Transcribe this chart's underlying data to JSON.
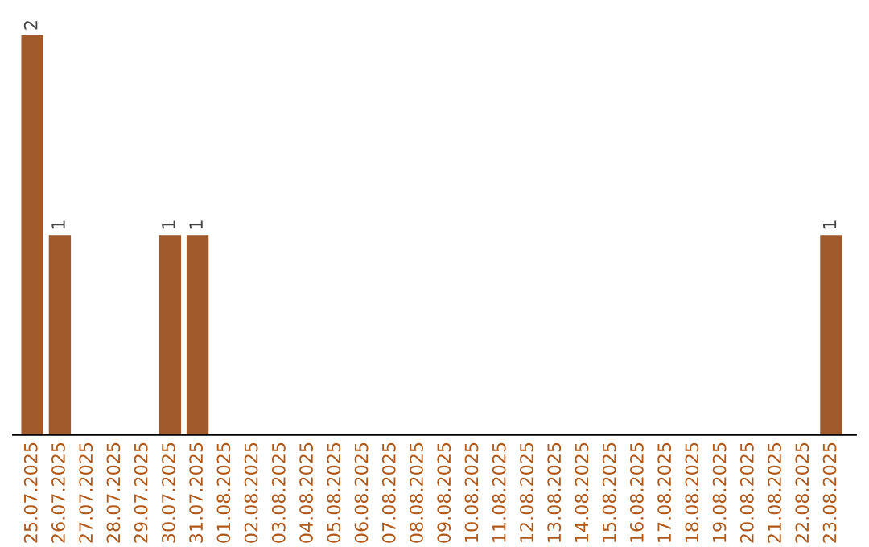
{
  "chart_data": {
    "type": "bar",
    "categories": [
      "25.07.2025",
      "26.07.2025",
      "27.07.2025",
      "28.07.2025",
      "29.07.2025",
      "30.07.2025",
      "31.07.2025",
      "01.08.2025",
      "02.08.2025",
      "03.08.2025",
      "04.08.2025",
      "05.08.2025",
      "06.08.2025",
      "07.08.2025",
      "08.08.2025",
      "09.08.2025",
      "10.08.2025",
      "11.08.2025",
      "12.08.2025",
      "13.08.2025",
      "14.08.2025",
      "15.08.2025",
      "16.08.2025",
      "17.08.2025",
      "18.08.2025",
      "19.08.2025",
      "20.08.2025",
      "21.08.2025",
      "22.08.2025",
      "23.08.2025"
    ],
    "values": [
      2,
      1,
      0,
      0,
      0,
      1,
      1,
      0,
      0,
      0,
      0,
      0,
      0,
      0,
      0,
      0,
      0,
      0,
      0,
      0,
      0,
      0,
      0,
      0,
      0,
      0,
      0,
      0,
      0,
      1
    ],
    "value_labels": [
      "2",
      "1",
      null,
      null,
      null,
      "1",
      "1",
      null,
      null,
      null,
      null,
      null,
      null,
      null,
      null,
      null,
      null,
      null,
      null,
      null,
      null,
      null,
      null,
      null,
      null,
      null,
      null,
      null,
      null,
      "1"
    ],
    "color": "#a0592a",
    "grid": false,
    "legend": false
  }
}
